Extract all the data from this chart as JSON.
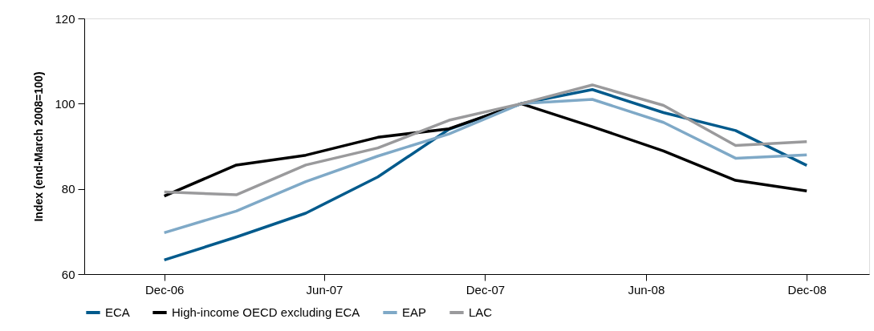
{
  "chart_data": {
    "type": "line",
    "ylabel": "Index (end-March 2008=100)",
    "x": [
      "2006-12-01",
      "2007-02-21",
      "2007-05-11",
      "2007-08-01",
      "2007-10-21",
      "2008-01-11",
      "2008-04-01",
      "2008-06-21",
      "2008-09-11",
      "2008-12-01"
    ],
    "xlim": [
      "2006-09-01",
      "2009-02-10"
    ],
    "xticks": [
      {
        "value": "2006-12-01",
        "label": "Dec-06"
      },
      {
        "value": "2007-06-01",
        "label": "Jun-07"
      },
      {
        "value": "2007-12-01",
        "label": "Dec-07"
      },
      {
        "value": "2008-06-01",
        "label": "Jun-08"
      },
      {
        "value": "2008-12-01",
        "label": "Dec-08"
      }
    ],
    "ylim": [
      60,
      120
    ],
    "yticks": [
      60,
      80,
      100,
      120
    ],
    "grid": false,
    "legend": "bottom",
    "marker": "none",
    "line_style": "solid",
    "series": [
      {
        "name": "ECA",
        "color": "#005a8c",
        "values": [
          63.3,
          68.7,
          74.3,
          82.8,
          94.0,
          100,
          103.3,
          97.9,
          93.7,
          85.5
        ]
      },
      {
        "name": "High-income OECD excluding ECA",
        "color": "#000000",
        "values": [
          78.3,
          85.6,
          87.9,
          92.1,
          94.1,
          100,
          94.6,
          88.9,
          82.0,
          79.5
        ]
      },
      {
        "name": "EAP",
        "color": "#7fa9c7",
        "values": [
          69.7,
          74.8,
          81.7,
          87.7,
          92.9,
          100,
          101.0,
          95.6,
          87.2,
          88.0
        ]
      },
      {
        "name": "LAC",
        "color": "#9a9a9c",
        "values": [
          79.3,
          78.6,
          85.6,
          89.6,
          96.1,
          100,
          104.4,
          99.6,
          90.2,
          91.1
        ]
      }
    ]
  }
}
